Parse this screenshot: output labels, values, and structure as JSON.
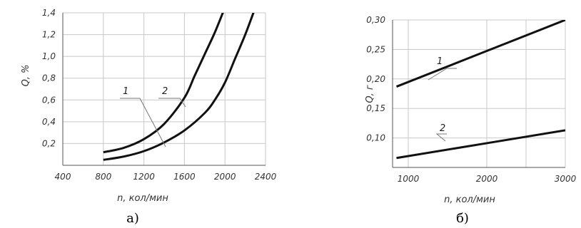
{
  "chart_data": [
    {
      "type": "line",
      "caption": "а)",
      "xlabel": "n, кол/мин",
      "ylabel": "Q, %",
      "xlim": [
        400,
        2400
      ],
      "ylim": [
        0,
        1.4
      ],
      "xticks": [
        400,
        800,
        1200,
        1600,
        2000,
        2400
      ],
      "yticks": [
        0.2,
        0.4,
        0.6,
        0.8,
        1.0,
        1.2,
        1.4
      ],
      "xtick_labels": [
        "400",
        "800",
        "1200",
        "1600",
        "2000",
        "2400"
      ],
      "ytick_labels": [
        "0,2",
        "0,4",
        "0,6",
        "0,8",
        "1,0",
        "1,2",
        "1,4"
      ],
      "grid": true,
      "series": [
        {
          "name": "1",
          "x": [
            800,
            1000,
            1200,
            1400,
            1600,
            1700,
            1800,
            1900,
            2000
          ],
          "y": [
            0.12,
            0.16,
            0.24,
            0.38,
            0.62,
            0.82,
            1.02,
            1.22,
            1.45
          ]
        },
        {
          "name": "2",
          "x": [
            800,
            1000,
            1200,
            1400,
            1600,
            1800,
            1900,
            2000,
            2100,
            2200,
            2300
          ],
          "y": [
            0.05,
            0.08,
            0.13,
            0.21,
            0.32,
            0.48,
            0.6,
            0.76,
            0.98,
            1.2,
            1.45
          ]
        }
      ]
    },
    {
      "type": "line",
      "caption": "б)",
      "xlabel": "n, кол/мин",
      "ylabel": "Q, г",
      "xlim": [
        800,
        3000
      ],
      "ylim": [
        0.05,
        0.3
      ],
      "xticks": [
        1000,
        2000,
        3000
      ],
      "yticks": [
        0.1,
        0.15,
        0.2,
        0.25,
        0.3
      ],
      "xtick_labels": [
        "1000",
        "2000",
        "3000"
      ],
      "ytick_labels": [
        "0,10",
        "0,15",
        "0,20",
        "0,25",
        "0,30"
      ],
      "extra_vgrid": [
        2500
      ],
      "grid": true,
      "series": [
        {
          "name": "1",
          "x": [
            850,
            3000
          ],
          "y": [
            0.187,
            0.3
          ]
        },
        {
          "name": "2",
          "x": [
            850,
            3000
          ],
          "y": [
            0.066,
            0.113
          ]
        }
      ]
    }
  ]
}
